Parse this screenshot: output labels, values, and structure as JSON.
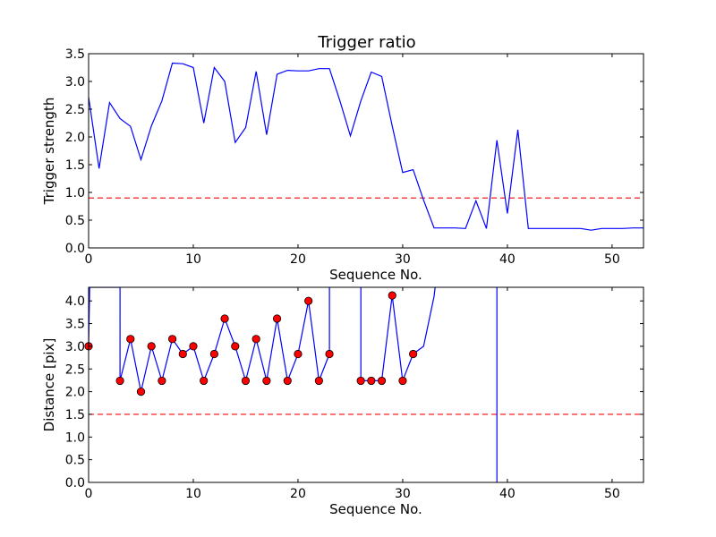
{
  "figure": {
    "title": "Trigger ratio"
  },
  "chart_data": [
    {
      "type": "line",
      "title": "Trigger ratio",
      "xlabel": "Sequence No.",
      "ylabel": "Trigger strength",
      "xlim": [
        0,
        53
      ],
      "ylim": [
        0,
        3.5
      ],
      "xticks": [
        0,
        10,
        20,
        30,
        40,
        50
      ],
      "yticks": [
        0.0,
        0.5,
        1.0,
        1.5,
        2.0,
        2.5,
        3.0,
        3.5
      ],
      "x_tick_labels": [
        "0",
        "10",
        "20",
        "30",
        "40",
        "50"
      ],
      "y_tick_labels": [
        "0.0",
        "0.5",
        "1.0",
        "1.5",
        "2.0",
        "2.5",
        "3.0",
        "3.5"
      ],
      "series": [
        {
          "style": "solid",
          "color": "#0000ff",
          "x": [
            0,
            1,
            2,
            3,
            4,
            5,
            6,
            7,
            8,
            9,
            10,
            11,
            12,
            13,
            14,
            15,
            16,
            17,
            18,
            19,
            20,
            21,
            22,
            23,
            24,
            25,
            26,
            27,
            28,
            29,
            30,
            31,
            32,
            33,
            34,
            35,
            36,
            37,
            38,
            39,
            40,
            41,
            42,
            43,
            44,
            45,
            46,
            47,
            48,
            49,
            50,
            51,
            52,
            53
          ],
          "y": [
            2.72,
            1.43,
            2.62,
            2.33,
            2.19,
            1.59,
            2.2,
            2.65,
            3.33,
            3.32,
            3.25,
            2.25,
            3.25,
            3.0,
            1.9,
            2.17,
            3.18,
            2.04,
            3.13,
            3.2,
            3.19,
            3.19,
            3.23,
            3.23,
            2.65,
            2.02,
            2.65,
            3.17,
            3.09,
            2.2,
            1.36,
            1.41,
            0.86,
            0.36,
            0.36,
            0.36,
            0.35,
            0.85,
            0.35,
            1.94,
            0.62,
            2.13,
            0.35,
            0.35,
            0.35,
            0.35,
            0.35,
            0.35,
            0.32,
            0.35,
            0.35,
            0.35,
            0.36,
            0.36
          ]
        }
      ],
      "threshold": {
        "y": 0.9,
        "style": "dashed",
        "color": "#ff0000"
      }
    },
    {
      "type": "line",
      "title": "",
      "xlabel": "Sequence No.",
      "ylabel": "Distance [pix]",
      "xlim": [
        0,
        53
      ],
      "ylim": [
        0,
        4.3
      ],
      "xticks": [
        0,
        10,
        20,
        30,
        40,
        50
      ],
      "yticks": [
        0.0,
        0.5,
        1.0,
        1.5,
        2.0,
        2.5,
        3.0,
        3.5,
        4.0
      ],
      "x_tick_labels": [
        "0",
        "10",
        "20",
        "30",
        "40",
        "50"
      ],
      "y_tick_labels": [
        "0.0",
        "0.5",
        "1.0",
        "1.5",
        "2.0",
        "2.5",
        "3.0",
        "3.5",
        "4.0"
      ],
      "series": [
        {
          "style": "solid",
          "color": "#0000ff",
          "x": [
            0,
            0.1,
            3,
            3,
            4,
            5,
            6,
            7,
            8,
            9,
            10,
            11,
            12,
            13,
            14,
            15,
            16,
            17,
            18,
            19,
            20,
            21,
            22,
            23,
            23
          ],
          "y": [
            3.0,
            4.3,
            4.3,
            2.24,
            3.16,
            2.0,
            3.0,
            2.24,
            3.16,
            2.83,
            3.0,
            2.24,
            2.83,
            3.61,
            3.0,
            2.24,
            3.16,
            2.24,
            3.61,
            2.24,
            2.83,
            4.0,
            2.24,
            2.83,
            4.3
          ]
        },
        {
          "style": "solid",
          "color": "#0000ff",
          "x": [
            26,
            26,
            27,
            28,
            29,
            30,
            31,
            32,
            33,
            33.1
          ],
          "y": [
            4.3,
            2.24,
            2.24,
            2.24,
            4.12,
            2.24,
            2.83,
            3.0,
            4.1,
            4.3
          ]
        },
        {
          "style": "solid",
          "color": "#0000ff",
          "x": [
            39,
            39
          ],
          "y": [
            4.3,
            0
          ]
        }
      ],
      "markers": {
        "color": "#ff0000",
        "x": [
          0,
          3,
          4,
          5,
          6,
          7,
          8,
          9,
          10,
          11,
          12,
          13,
          14,
          15,
          16,
          17,
          18,
          19,
          20,
          21,
          22,
          23,
          26,
          27,
          28,
          29,
          30,
          31
        ],
        "y": [
          3.0,
          2.24,
          3.16,
          2.0,
          3.0,
          2.24,
          3.16,
          2.83,
          3.0,
          2.24,
          2.83,
          3.61,
          3.0,
          2.24,
          3.16,
          2.24,
          3.61,
          2.24,
          2.83,
          4.0,
          2.24,
          2.83,
          2.24,
          2.24,
          2.24,
          4.12,
          2.24,
          2.83
        ]
      },
      "threshold": {
        "y": 1.5,
        "style": "dashed",
        "color": "#ff0000"
      }
    }
  ]
}
